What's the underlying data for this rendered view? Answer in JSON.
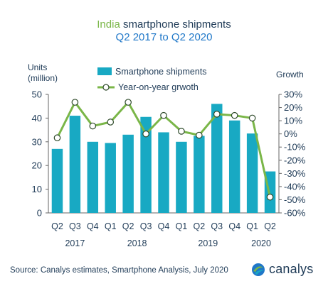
{
  "title": {
    "brand_word": "India",
    "rest": " smartphone shipments",
    "subtitle": "Q2 2017 to Q2 2020"
  },
  "chart_data": {
    "type": "bar",
    "quarters": [
      "Q2",
      "Q3",
      "Q4",
      "Q1",
      "Q2",
      "Q3",
      "Q4",
      "Q1",
      "Q2",
      "Q3",
      "Q4",
      "Q1",
      "Q2"
    ],
    "years": [
      {
        "label": "2017",
        "center_index": 1
      },
      {
        "label": "2018",
        "center_index": 4.5
      },
      {
        "label": "2019",
        "center_index": 8.5
      },
      {
        "label": "2020",
        "center_index": 11.5
      }
    ],
    "series": [
      {
        "name": "Smartphone shipments",
        "axis": "left",
        "kind": "bar",
        "values": [
          27,
          41,
          30,
          29.5,
          33,
          40.5,
          34,
          30,
          32.5,
          46,
          39,
          33.5,
          17.5
        ]
      },
      {
        "name": "Year-on-year grwoth",
        "axis": "right",
        "kind": "line",
        "values": [
          -3,
          24,
          6,
          9,
          24,
          0,
          14,
          2,
          -1,
          15,
          14,
          12,
          -48
        ]
      }
    ],
    "left_axis": {
      "label_line1": "Units",
      "label_line2": "(million)",
      "ylim": [
        0,
        50
      ],
      "ticks": [
        "0",
        "10",
        "20",
        "30",
        "40",
        "50"
      ]
    },
    "right_axis": {
      "label": "Growth",
      "ylim": [
        -60,
        30
      ],
      "ticks": [
        "30%",
        "20%",
        "10%",
        "0%",
        "-10%",
        "-20%",
        "-30%",
        "-40%",
        "-50%",
        "-60%"
      ]
    },
    "grid": false,
    "legend_position": "top-center",
    "colors": {
      "bars": "#18a9c3",
      "line": "#7ab648",
      "marker_fill": "#ffffff",
      "axis": "#666666",
      "text": "#1f3b57"
    }
  },
  "footer": {
    "source": "Source: Canalys estimates, Smartphone Analysis, July 2020"
  },
  "brand": {
    "name": "canalys",
    "icon": "canalys-logo-icon"
  }
}
